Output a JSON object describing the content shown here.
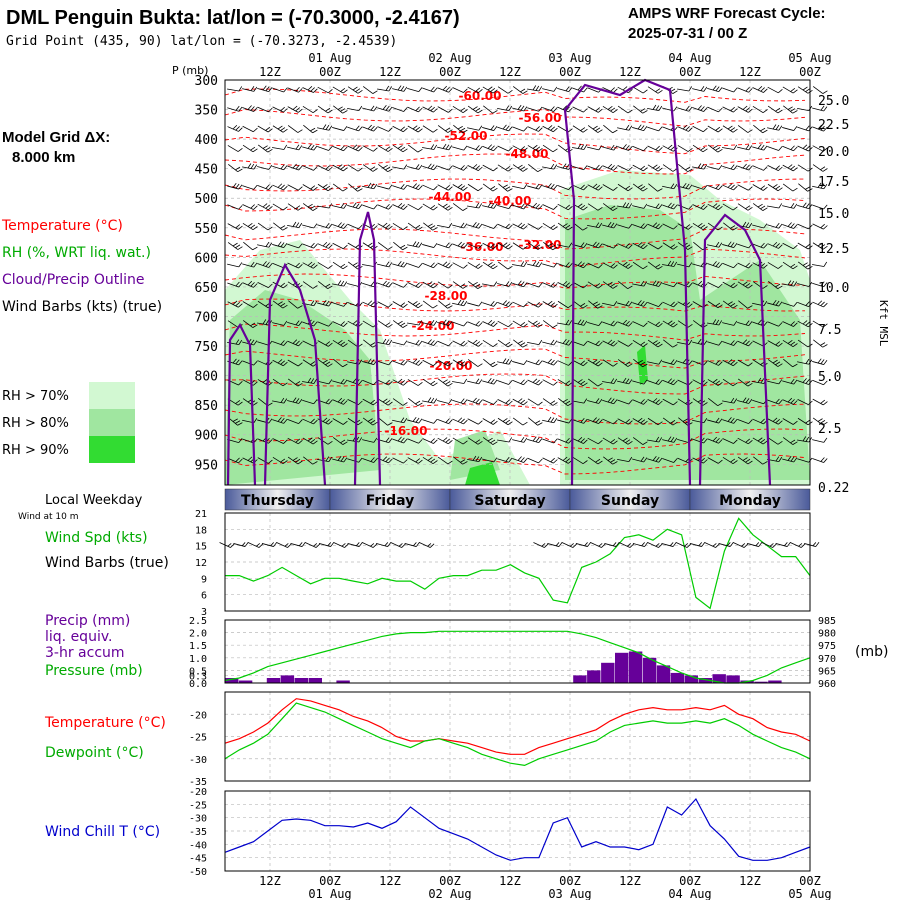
{
  "header": {
    "title": "DML Penguin Bukta:  lat/lon = (-70.3000, -2.4167)",
    "subtitle": "Grid Point (435, 90) lat/lon = (-70.3273, -2.4539)",
    "cycle_line1": "AMPS WRF Forecast Cycle:",
    "cycle_line2": "2025-07-31 / 00  Z"
  },
  "sidebar": {
    "model_grid_line1": "Model Grid ΔX:",
    "model_grid_line2": "8.000 km",
    "legend_temperature": "Temperature (°C)",
    "legend_rh": "RH (%, WRT liq. wat.)",
    "legend_cloud": "Cloud/Precip Outline",
    "legend_wind": "Wind Barbs (kts) (true)",
    "rh_boxes": [
      {
        "label": "RH > 70%",
        "color": "#d2f8d2"
      },
      {
        "label": "RH > 80%",
        "color": "#a0e6a0"
      },
      {
        "label": "RH > 90%",
        "color": "#32dc32"
      }
    ],
    "local_weekday": "Local Weekday",
    "wind_at": "Wind at 10 m"
  },
  "time_axis": {
    "top_ticks": [
      "12Z",
      "00Z",
      "12Z",
      "00Z",
      "12Z",
      "00Z",
      "12Z",
      "00Z",
      "12Z",
      "00Z"
    ],
    "dates": [
      "01 Aug",
      "02 Aug",
      "03 Aug",
      "04 Aug",
      "05 Aug"
    ]
  },
  "colors": {
    "temperature": "#ff0000",
    "rh": "#00cc00",
    "cloud": "#660099",
    "windchill": "#0000cc",
    "precip": "#660099",
    "pressure": "#00cc00",
    "weekday_band": "#4a5a9a"
  },
  "chart_data": [
    {
      "type": "heatmap",
      "title": "",
      "ylabel": "P (mb)",
      "ylabel_right": "Kft MSL",
      "y_ticks": [
        300,
        350,
        400,
        450,
        500,
        550,
        600,
        650,
        700,
        750,
        800,
        850,
        900,
        950
      ],
      "y_right_ticks": [
        "25.0",
        "22.5",
        "20.0",
        "17.5",
        "15.0",
        "12.5",
        "10.0",
        "7.5",
        "5.0",
        "2.5",
        "0.22"
      ],
      "temperature_labels": [
        "-60.00",
        "-56.00",
        "-52.00",
        "-48.00",
        "-44.00",
        "-40.00",
        "-36.00",
        "-32.00",
        "-28.00",
        "-24.00",
        "-20.00",
        "-16.00"
      ],
      "grid": true
    },
    {
      "type": "table",
      "title": "",
      "weekdays": [
        "Thursday",
        "Friday",
        "Saturday",
        "Sunday",
        "Monday"
      ]
    },
    {
      "type": "line",
      "title": "",
      "series": [
        {
          "name": "Wind Spd (kts)",
          "color": "#00cc00",
          "values": [
            9.5,
            9.5,
            8.5,
            9.5,
            11,
            9.5,
            8,
            9,
            9,
            8.5,
            8,
            9,
            8.5,
            8.5,
            7,
            9,
            9.5,
            9.5,
            10.5,
            10.5,
            11.5,
            10,
            9,
            5,
            4.5,
            11,
            12,
            13.5,
            16.5,
            17,
            16,
            18,
            17,
            5.5,
            3.5,
            14,
            20,
            17,
            15,
            13,
            13,
            9.5
          ]
        }
      ],
      "ylabel": "Wind Barbs (true)",
      "y_ticks": [
        3,
        6,
        9,
        12,
        15,
        18,
        21
      ],
      "ylim": [
        3,
        21
      ]
    },
    {
      "type": "bar",
      "title": "",
      "series": [
        {
          "name": "Precip (mm) liq. equiv. 3-hr accum",
          "color": "#660099",
          "values": [
            0.2,
            0.1,
            0.0,
            0.2,
            0.3,
            0.2,
            0.2,
            0.0,
            0.1,
            0.0,
            0.0,
            0.0,
            0.0,
            0.0,
            0.0,
            0.0,
            0.0,
            0.0,
            0.0,
            0.0,
            0.0,
            0.0,
            0.0,
            0.0,
            0.0,
            0.3,
            0.5,
            0.8,
            1.2,
            1.25,
            1.0,
            0.7,
            0.4,
            0.3,
            0.2,
            0.35,
            0.3,
            0.1,
            0.05,
            0.1,
            0.0,
            0.0
          ]
        },
        {
          "name": "Pressure (mb)",
          "color": "#00cc00",
          "values": [
            961,
            962,
            964,
            966.5,
            968,
            969.5,
            971,
            972.5,
            974,
            975.5,
            977,
            978.5,
            979.5,
            980,
            980,
            980.5,
            980.5,
            980.5,
            980.5,
            980.5,
            980.5,
            980.5,
            980.5,
            980.5,
            980.5,
            979.5,
            978,
            976,
            974,
            972,
            969,
            966.5,
            964,
            962,
            961,
            960,
            960,
            961,
            963,
            966,
            968,
            970
          ]
        }
      ],
      "y_ticks": [
        "0.0",
        "0.3",
        "0.5",
        "1.0",
        "1.5",
        "2.0",
        "2.5"
      ],
      "y_right_ticks": [
        960,
        965,
        970,
        975,
        980,
        985
      ],
      "ylim": [
        0,
        2.5
      ],
      "ylim_right": [
        960,
        985
      ],
      "ylabel_right": "(mb)"
    },
    {
      "type": "line",
      "title": "",
      "series": [
        {
          "name": "Temperature (°C)",
          "color": "#ff0000",
          "values": [
            -26.5,
            -25.5,
            -24,
            -22,
            -19,
            -16.5,
            -17,
            -18,
            -19,
            -20.5,
            -21.5,
            -23,
            -25,
            -26,
            -26,
            -25.5,
            -26,
            -26.5,
            -27.5,
            -28.5,
            -29,
            -29,
            -27.5,
            -26.5,
            -25.5,
            -24.5,
            -23.5,
            -21.5,
            -20,
            -19,
            -18.5,
            -19,
            -19,
            -18.5,
            -19,
            -18,
            -20,
            -21,
            -23,
            -24,
            -24.5,
            -26
          ]
        },
        {
          "name": "Dewpoint (°C)",
          "color": "#00cc00",
          "values": [
            -30,
            -28,
            -26.5,
            -24.5,
            -21,
            -17.5,
            -18.5,
            -19.5,
            -21,
            -22.5,
            -24,
            -25.5,
            -26.5,
            -27.5,
            -26,
            -25.5,
            -26.5,
            -27.5,
            -29,
            -30,
            -31,
            -31.5,
            -30,
            -29,
            -28,
            -27,
            -26,
            -24,
            -22.5,
            -22,
            -21.5,
            -22,
            -22,
            -21.5,
            -22,
            -21,
            -22.5,
            -24.5,
            -26,
            -27.5,
            -28.5,
            -30
          ]
        }
      ],
      "y_ticks": [
        -35,
        -30,
        -25,
        -20
      ],
      "ylim": [
        -35,
        -15
      ]
    },
    {
      "type": "line",
      "title": "",
      "series": [
        {
          "name": "Wind Chill T (°C)",
          "color": "#0000cc",
          "values": [
            -43,
            -41,
            -39,
            -35,
            -31,
            -30.5,
            -31,
            -33,
            -33,
            -33.5,
            -32,
            -34,
            -31.5,
            -26,
            -30,
            -34,
            -36,
            -38,
            -41,
            -44,
            -46,
            -45,
            -45,
            -32,
            -30,
            -41,
            -39,
            -41,
            -41,
            -42,
            -40,
            -26,
            -29,
            -23,
            -33,
            -38,
            -44.5,
            -46,
            -46,
            -45,
            -43,
            -41
          ]
        }
      ],
      "y_ticks": [
        -50,
        -45,
        -40,
        -35,
        -30,
        -25,
        -20
      ],
      "ylim": [
        -50,
        -20
      ]
    }
  ],
  "panel_labels": {
    "p_mb": "P (mb)",
    "kft": "Kft MSL",
    "wind_spd": "Wind Spd (kts)",
    "wind_barbs": "Wind Barbs (true)",
    "precip_1": "Precip (mm)",
    "precip_2": "liq. equiv.",
    "precip_3": "3-hr accum",
    "pressure": "Pressure (mb)",
    "mb": "(mb)",
    "temperature": "Temperature (°C)",
    "dewpoint": "Dewpoint (°C)",
    "windchill": "Wind Chill T (°C)"
  }
}
